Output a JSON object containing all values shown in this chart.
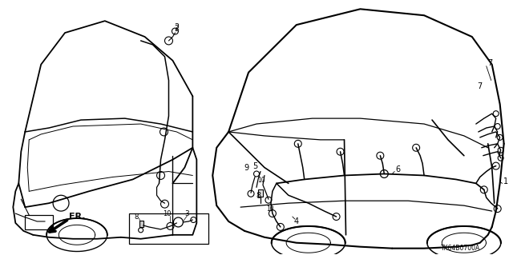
{
  "background_color": "#ffffff",
  "fig_width": 6.4,
  "fig_height": 3.19,
  "dpi": 100,
  "diagram_code": "TK64B0700A"
}
